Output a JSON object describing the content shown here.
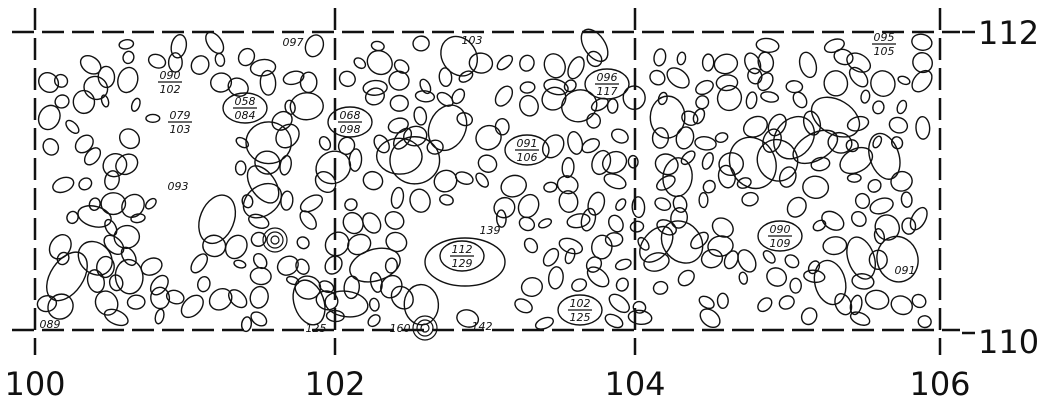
{
  "axes": {
    "x_labels": [
      "100",
      "102",
      "104",
      "106"
    ],
    "y_labels": [
      "112",
      "110"
    ]
  },
  "annotations": [
    {
      "top": "090",
      "bottom": "102"
    },
    {
      "top": "058",
      "bottom": "084"
    },
    {
      "top": "079",
      "bottom": "103"
    },
    {
      "top": "068",
      "bottom": "098"
    },
    {
      "top": "096",
      "bottom": "117"
    },
    {
      "top": "091",
      "bottom": "106"
    },
    {
      "top": "112",
      "bottom": "129"
    },
    {
      "top": "090",
      "bottom": "109"
    },
    {
      "top": "102",
      "bottom": "125"
    },
    {
      "top": "095",
      "bottom": "105"
    }
  ],
  "spot_heights": [
    "097",
    "103",
    "093",
    "139",
    "091",
    "089",
    "125",
    "160",
    "142"
  ]
}
